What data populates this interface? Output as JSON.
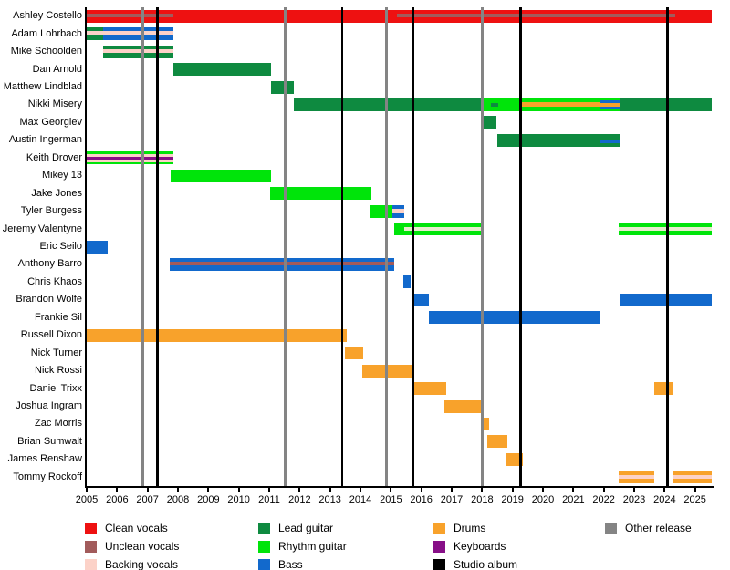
{
  "chart_data": {
    "type": "bar",
    "variant": "band-membership-timeline",
    "x_axis": {
      "min": 2005,
      "max": 2025.55,
      "tick_years": [
        2005,
        2006,
        2007,
        2008,
        2009,
        2010,
        2011,
        2012,
        2013,
        2014,
        2015,
        2016,
        2017,
        2018,
        2019,
        2020,
        2021,
        2022,
        2023,
        2024,
        2025
      ]
    },
    "grid": "release-lines-only",
    "legend_position": "bottom",
    "colors": {
      "clean": "#ee1111",
      "unclean": "#a25b5b",
      "backing": "#fcd2c8",
      "lead": "#0e8a40",
      "rhythm": "#00e40a",
      "bass": "#1269cc",
      "drums": "#f8a22b",
      "keys": "#870f87",
      "studio": "#000000",
      "other": "#848484",
      "cream": "#e7eccd"
    },
    "members": [
      {
        "name": "Ashley Costello",
        "segments": [
          {
            "from": 2005.0,
            "to": 2007.85,
            "layers": [
              [
                "clean",
                4
              ],
              [
                "unclean",
                4
              ],
              [
                "clean",
                6
              ]
            ]
          },
          {
            "from": 2007.85,
            "to": 2015.2,
            "layers": [
              [
                "clean",
                1
              ]
            ]
          },
          {
            "from": 2015.2,
            "to": 2024.35,
            "layers": [
              [
                "clean",
                4
              ],
              [
                "unclean",
                4
              ],
              [
                "clean",
                6
              ]
            ]
          },
          {
            "from": 2024.35,
            "to": 2025.55,
            "layers": [
              [
                "clean",
                1
              ]
            ]
          }
        ]
      },
      {
        "name": "Adam Lohrbach",
        "segments": [
          {
            "from": 2005.0,
            "to": 2005.54,
            "layers": [
              [
                "lead",
                4
              ],
              [
                "backing",
                4
              ],
              [
                "lead",
                6
              ]
            ]
          },
          {
            "from": 2005.54,
            "to": 2007.85,
            "layers": [
              [
                "bass",
                4
              ],
              [
                "backing",
                4
              ],
              [
                "bass",
                6
              ]
            ]
          }
        ]
      },
      {
        "name": "Mike Schoolden",
        "segments": [
          {
            "from": 2005.54,
            "to": 2007.85,
            "layers": [
              [
                "lead",
                4
              ],
              [
                "backing",
                4
              ],
              [
                "lead",
                6
              ]
            ]
          }
        ]
      },
      {
        "name": "Dan Arnold",
        "segments": [
          {
            "from": 2007.85,
            "to": 2011.06,
            "layers": [
              [
                "lead",
                1
              ]
            ]
          }
        ]
      },
      {
        "name": "Matthew Lindblad",
        "segments": [
          {
            "from": 2011.06,
            "to": 2011.81,
            "layers": [
              [
                "lead",
                1
              ]
            ]
          }
        ]
      },
      {
        "name": "Nikki Misery",
        "segments": [
          {
            "from": 2011.81,
            "to": 2018.0,
            "layers": [
              [
                "lead",
                1
              ]
            ]
          },
          {
            "from": 2018.0,
            "to": 2018.29,
            "layers": [
              [
                "rhythm",
                1
              ]
            ]
          },
          {
            "from": 2018.29,
            "to": 2018.53,
            "layers": [
              [
                "rhythm",
                5
              ],
              [
                "lead",
                4
              ],
              [
                "rhythm",
                5
              ]
            ]
          },
          {
            "from": 2018.53,
            "to": 2019.27,
            "layers": [
              [
                "rhythm",
                1
              ]
            ]
          },
          {
            "from": 2019.27,
            "to": 2021.89,
            "layers": [
              [
                "rhythm",
                4
              ],
              [
                "drums",
                5
              ],
              [
                "rhythm",
                5
              ]
            ]
          },
          {
            "from": 2021.89,
            "to": 2022.55,
            "layers": [
              [
                "rhythm",
                2
              ],
              [
                "bass",
                3
              ],
              [
                "drums",
                4
              ],
              [
                "bass",
                3
              ],
              [
                "rhythm",
                2
              ]
            ]
          },
          {
            "from": 2022.55,
            "to": 2025.55,
            "layers": [
              [
                "lead",
                1
              ]
            ]
          }
        ]
      },
      {
        "name": "Max Georgiev",
        "segments": [
          {
            "from": 2018.0,
            "to": 2018.47,
            "layers": [
              [
                "lead",
                1
              ]
            ]
          }
        ]
      },
      {
        "name": "Austin Ingerman",
        "segments": [
          {
            "from": 2018.5,
            "to": 2021.89,
            "layers": [
              [
                "lead",
                1
              ]
            ]
          },
          {
            "from": 2021.89,
            "to": 2022.55,
            "layers": [
              [
                "lead",
                6
              ],
              [
                "bass",
                3
              ],
              [
                "lead",
                3
              ]
            ]
          }
        ]
      },
      {
        "name": "Keith Drover",
        "segments": [
          {
            "from": 2005.0,
            "to": 2007.85,
            "layers": [
              [
                "rhythm",
                3
              ],
              [
                "backing",
                4
              ],
              [
                "keys",
                3
              ],
              [
                "backing",
                4
              ],
              [
                "rhythm",
                3
              ]
            ]
          }
        ]
      },
      {
        "name": "Mikey 13",
        "segments": [
          {
            "from": 2007.76,
            "to": 2011.06,
            "layers": [
              [
                "rhythm",
                1
              ]
            ]
          }
        ]
      },
      {
        "name": "Jake Jones",
        "segments": [
          {
            "from": 2011.03,
            "to": 2014.36,
            "layers": [
              [
                "rhythm",
                1
              ]
            ]
          }
        ]
      },
      {
        "name": "Tyler Burgess",
        "segments": [
          {
            "from": 2014.33,
            "to": 2015.05,
            "layers": [
              [
                "rhythm",
                1
              ]
            ]
          },
          {
            "from": 2015.05,
            "to": 2015.44,
            "layers": [
              [
                "bass",
                4
              ],
              [
                "backing",
                4
              ],
              [
                "bass",
                4
              ]
            ]
          }
        ]
      },
      {
        "name": "Jeremy Valentyne",
        "segments": [
          {
            "from": 2015.11,
            "to": 2015.44,
            "layers": [
              [
                "rhythm",
                1
              ]
            ]
          },
          {
            "from": 2015.44,
            "to": 2018.01,
            "layers": [
              [
                "rhythm",
                4
              ],
              [
                "cream",
                4
              ],
              [
                "rhythm",
                4
              ]
            ]
          },
          {
            "from": 2022.49,
            "to": 2025.55,
            "layers": [
              [
                "rhythm",
                4
              ],
              [
                "cream",
                4
              ],
              [
                "rhythm",
                4
              ]
            ]
          }
        ]
      },
      {
        "name": "Eric Seilo",
        "segments": [
          {
            "from": 2005.0,
            "to": 2005.69,
            "layers": [
              [
                "bass",
                1
              ]
            ]
          }
        ]
      },
      {
        "name": "Anthony Barro",
        "segments": [
          {
            "from": 2007.73,
            "to": 2015.11,
            "layers": [
              [
                "bass",
                4
              ],
              [
                "unclean",
                4
              ],
              [
                "bass",
                6
              ]
            ]
          }
        ]
      },
      {
        "name": "Chris Khaos",
        "segments": [
          {
            "from": 2015.41,
            "to": 2015.65,
            "layers": [
              [
                "bass",
                1
              ]
            ]
          }
        ]
      },
      {
        "name": "Brandon Wolfe",
        "segments": [
          {
            "from": 2015.68,
            "to": 2016.25,
            "layers": [
              [
                "bass",
                1
              ]
            ]
          },
          {
            "from": 2022.52,
            "to": 2025.55,
            "layers": [
              [
                "bass",
                1
              ]
            ]
          }
        ]
      },
      {
        "name": "Frankie Sil",
        "segments": [
          {
            "from": 2016.25,
            "to": 2021.89,
            "layers": [
              [
                "bass",
                1
              ]
            ]
          }
        ]
      },
      {
        "name": "Russell Dixon",
        "segments": [
          {
            "from": 2005.0,
            "to": 2013.55,
            "layers": [
              [
                "drums",
                1
              ]
            ]
          }
        ]
      },
      {
        "name": "Nick Turner",
        "segments": [
          {
            "from": 2013.49,
            "to": 2014.09,
            "layers": [
              [
                "drums",
                1
              ]
            ]
          }
        ]
      },
      {
        "name": "Nick Rossi",
        "segments": [
          {
            "from": 2014.06,
            "to": 2015.71,
            "layers": [
              [
                "drums",
                1
              ]
            ]
          }
        ]
      },
      {
        "name": "Daniel Trixx",
        "segments": [
          {
            "from": 2015.68,
            "to": 2016.82,
            "layers": [
              [
                "drums",
                1
              ]
            ]
          },
          {
            "from": 2023.66,
            "to": 2024.29,
            "layers": [
              [
                "drums",
                1
              ]
            ]
          }
        ]
      },
      {
        "name": "Joshua Ingram",
        "segments": [
          {
            "from": 2016.76,
            "to": 2018.02,
            "layers": [
              [
                "drums",
                1
              ]
            ]
          }
        ]
      },
      {
        "name": "Zac Morris",
        "segments": [
          {
            "from": 2017.96,
            "to": 2018.23,
            "layers": [
              [
                "drums",
                1
              ]
            ]
          }
        ]
      },
      {
        "name": "Brian Sumwalt",
        "segments": [
          {
            "from": 2018.17,
            "to": 2018.83,
            "layers": [
              [
                "drums",
                1
              ]
            ]
          }
        ]
      },
      {
        "name": "James Renshaw",
        "segments": [
          {
            "from": 2018.77,
            "to": 2019.34,
            "layers": [
              [
                "drums",
                1
              ]
            ]
          }
        ]
      },
      {
        "name": "Tommy Rockoff",
        "segments": [
          {
            "from": 2022.49,
            "to": 2023.66,
            "layers": [
              [
                "drums",
                4
              ],
              [
                "backing",
                3
              ],
              [
                "drums",
                4
              ]
            ]
          },
          {
            "from": 2024.25,
            "to": 2025.55,
            "layers": [
              [
                "drums",
                4
              ],
              [
                "backing",
                3
              ],
              [
                "drums",
                4
              ]
            ]
          }
        ]
      }
    ],
    "releases": [
      {
        "year": 2006.83,
        "type": "other"
      },
      {
        "year": 2007.33,
        "type": "studio"
      },
      {
        "year": 2011.53,
        "type": "other"
      },
      {
        "year": 2013.4,
        "type": "studio"
      },
      {
        "year": 2014.84,
        "type": "other"
      },
      {
        "year": 2015.73,
        "type": "studio"
      },
      {
        "year": 2018.01,
        "type": "other"
      },
      {
        "year": 2019.27,
        "type": "studio"
      },
      {
        "year": 2024.1,
        "type": "studio"
      }
    ]
  },
  "legend": {
    "columns": [
      [
        {
          "label": "Clean vocals",
          "role": "clean"
        },
        {
          "label": "Unclean vocals",
          "role": "unclean"
        },
        {
          "label": "Backing vocals",
          "role": "backing"
        }
      ],
      [
        {
          "label": "Lead guitar",
          "role": "lead"
        },
        {
          "label": "Rhythm guitar",
          "role": "rhythm"
        },
        {
          "label": "Bass",
          "role": "bass"
        }
      ],
      [
        {
          "label": "Drums",
          "role": "drums"
        },
        {
          "label": "Keyboards",
          "role": "keys"
        },
        {
          "label": "Studio album",
          "role": "studio"
        }
      ],
      [
        {
          "label": "Other release",
          "role": "other"
        }
      ]
    ]
  }
}
